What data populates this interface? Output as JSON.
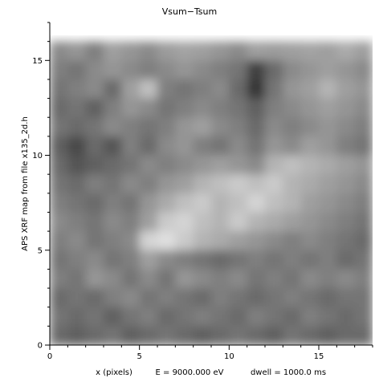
{
  "chart_data": {
    "type": "heatmap",
    "title": "Vsum−Tsum",
    "ylabel": "APS XRF map from file x135_2d.h",
    "xlabel_parts": [
      "x (pixels)",
      "E = 9000.000 eV",
      "dwell = 1000.0 ms"
    ],
    "xlim": [
      0,
      18
    ],
    "ylim": [
      0,
      17
    ],
    "x_ticks": [
      0,
      5,
      10,
      15
    ],
    "y_ticks": [
      0,
      5,
      10,
      15
    ],
    "grid": false,
    "colormap": "grayscale",
    "colors": {
      "axis": "#000000",
      "background": "#ffffff",
      "low": "#202020",
      "high": "#f4f4f4"
    },
    "grid_x_count": 18,
    "grid_y_count": 16,
    "rows_top_to_bottom": [
      [
        0.5,
        0.55,
        0.45,
        0.6,
        0.55,
        0.5,
        0.58,
        0.62,
        0.6,
        0.55,
        0.5,
        0.6,
        0.58,
        0.6,
        0.62,
        0.6,
        0.65,
        0.6
      ],
      [
        0.45,
        0.4,
        0.5,
        0.55,
        0.5,
        0.45,
        0.5,
        0.55,
        0.5,
        0.45,
        0.4,
        0.15,
        0.35,
        0.5,
        0.55,
        0.6,
        0.55,
        0.5
      ],
      [
        0.4,
        0.45,
        0.5,
        0.35,
        0.6,
        0.75,
        0.45,
        0.4,
        0.45,
        0.5,
        0.35,
        0.1,
        0.4,
        0.55,
        0.6,
        0.7,
        0.6,
        0.55
      ],
      [
        0.35,
        0.4,
        0.3,
        0.45,
        0.55,
        0.5,
        0.4,
        0.45,
        0.5,
        0.45,
        0.4,
        0.3,
        0.45,
        0.5,
        0.55,
        0.6,
        0.55,
        0.5
      ],
      [
        0.4,
        0.35,
        0.4,
        0.5,
        0.45,
        0.4,
        0.45,
        0.55,
        0.6,
        0.5,
        0.45,
        0.35,
        0.5,
        0.45,
        0.5,
        0.55,
        0.5,
        0.45
      ],
      [
        0.3,
        0.2,
        0.35,
        0.25,
        0.45,
        0.35,
        0.5,
        0.55,
        0.45,
        0.4,
        0.5,
        0.4,
        0.55,
        0.5,
        0.6,
        0.55,
        0.45,
        0.4
      ],
      [
        0.35,
        0.25,
        0.3,
        0.35,
        0.4,
        0.5,
        0.45,
        0.5,
        0.55,
        0.6,
        0.55,
        0.5,
        0.7,
        0.75,
        0.7,
        0.65,
        0.6,
        0.55
      ],
      [
        0.4,
        0.35,
        0.45,
        0.4,
        0.5,
        0.45,
        0.55,
        0.6,
        0.7,
        0.75,
        0.8,
        0.75,
        0.8,
        0.7,
        0.65,
        0.6,
        0.55,
        0.5
      ],
      [
        0.45,
        0.4,
        0.35,
        0.45,
        0.4,
        0.55,
        0.65,
        0.75,
        0.8,
        0.7,
        0.75,
        0.85,
        0.75,
        0.7,
        0.6,
        0.55,
        0.5,
        0.45
      ],
      [
        0.5,
        0.45,
        0.4,
        0.5,
        0.45,
        0.6,
        0.8,
        0.85,
        0.75,
        0.7,
        0.8,
        0.7,
        0.65,
        0.6,
        0.55,
        0.5,
        0.45,
        0.4
      ],
      [
        0.45,
        0.5,
        0.4,
        0.45,
        0.5,
        0.85,
        0.9,
        0.8,
        0.7,
        0.65,
        0.6,
        0.55,
        0.5,
        0.45,
        0.5,
        0.45,
        0.4,
        0.35
      ],
      [
        0.4,
        0.45,
        0.5,
        0.4,
        0.45,
        0.6,
        0.5,
        0.45,
        0.4,
        0.35,
        0.4,
        0.45,
        0.4,
        0.45,
        0.4,
        0.45,
        0.35,
        0.4
      ],
      [
        0.45,
        0.4,
        0.55,
        0.5,
        0.4,
        0.5,
        0.4,
        0.55,
        0.5,
        0.45,
        0.5,
        0.4,
        0.45,
        0.4,
        0.5,
        0.45,
        0.5,
        0.45
      ],
      [
        0.35,
        0.4,
        0.35,
        0.45,
        0.5,
        0.4,
        0.45,
        0.4,
        0.35,
        0.45,
        0.4,
        0.35,
        0.4,
        0.45,
        0.4,
        0.35,
        0.4,
        0.4
      ],
      [
        0.4,
        0.35,
        0.4,
        0.3,
        0.4,
        0.45,
        0.35,
        0.4,
        0.45,
        0.4,
        0.35,
        0.45,
        0.4,
        0.35,
        0.45,
        0.4,
        0.35,
        0.4
      ],
      [
        0.35,
        0.3,
        0.35,
        0.4,
        0.3,
        0.35,
        0.4,
        0.35,
        0.3,
        0.35,
        0.4,
        0.35,
        0.3,
        0.4,
        0.35,
        0.3,
        0.35,
        0.35
      ]
    ]
  }
}
